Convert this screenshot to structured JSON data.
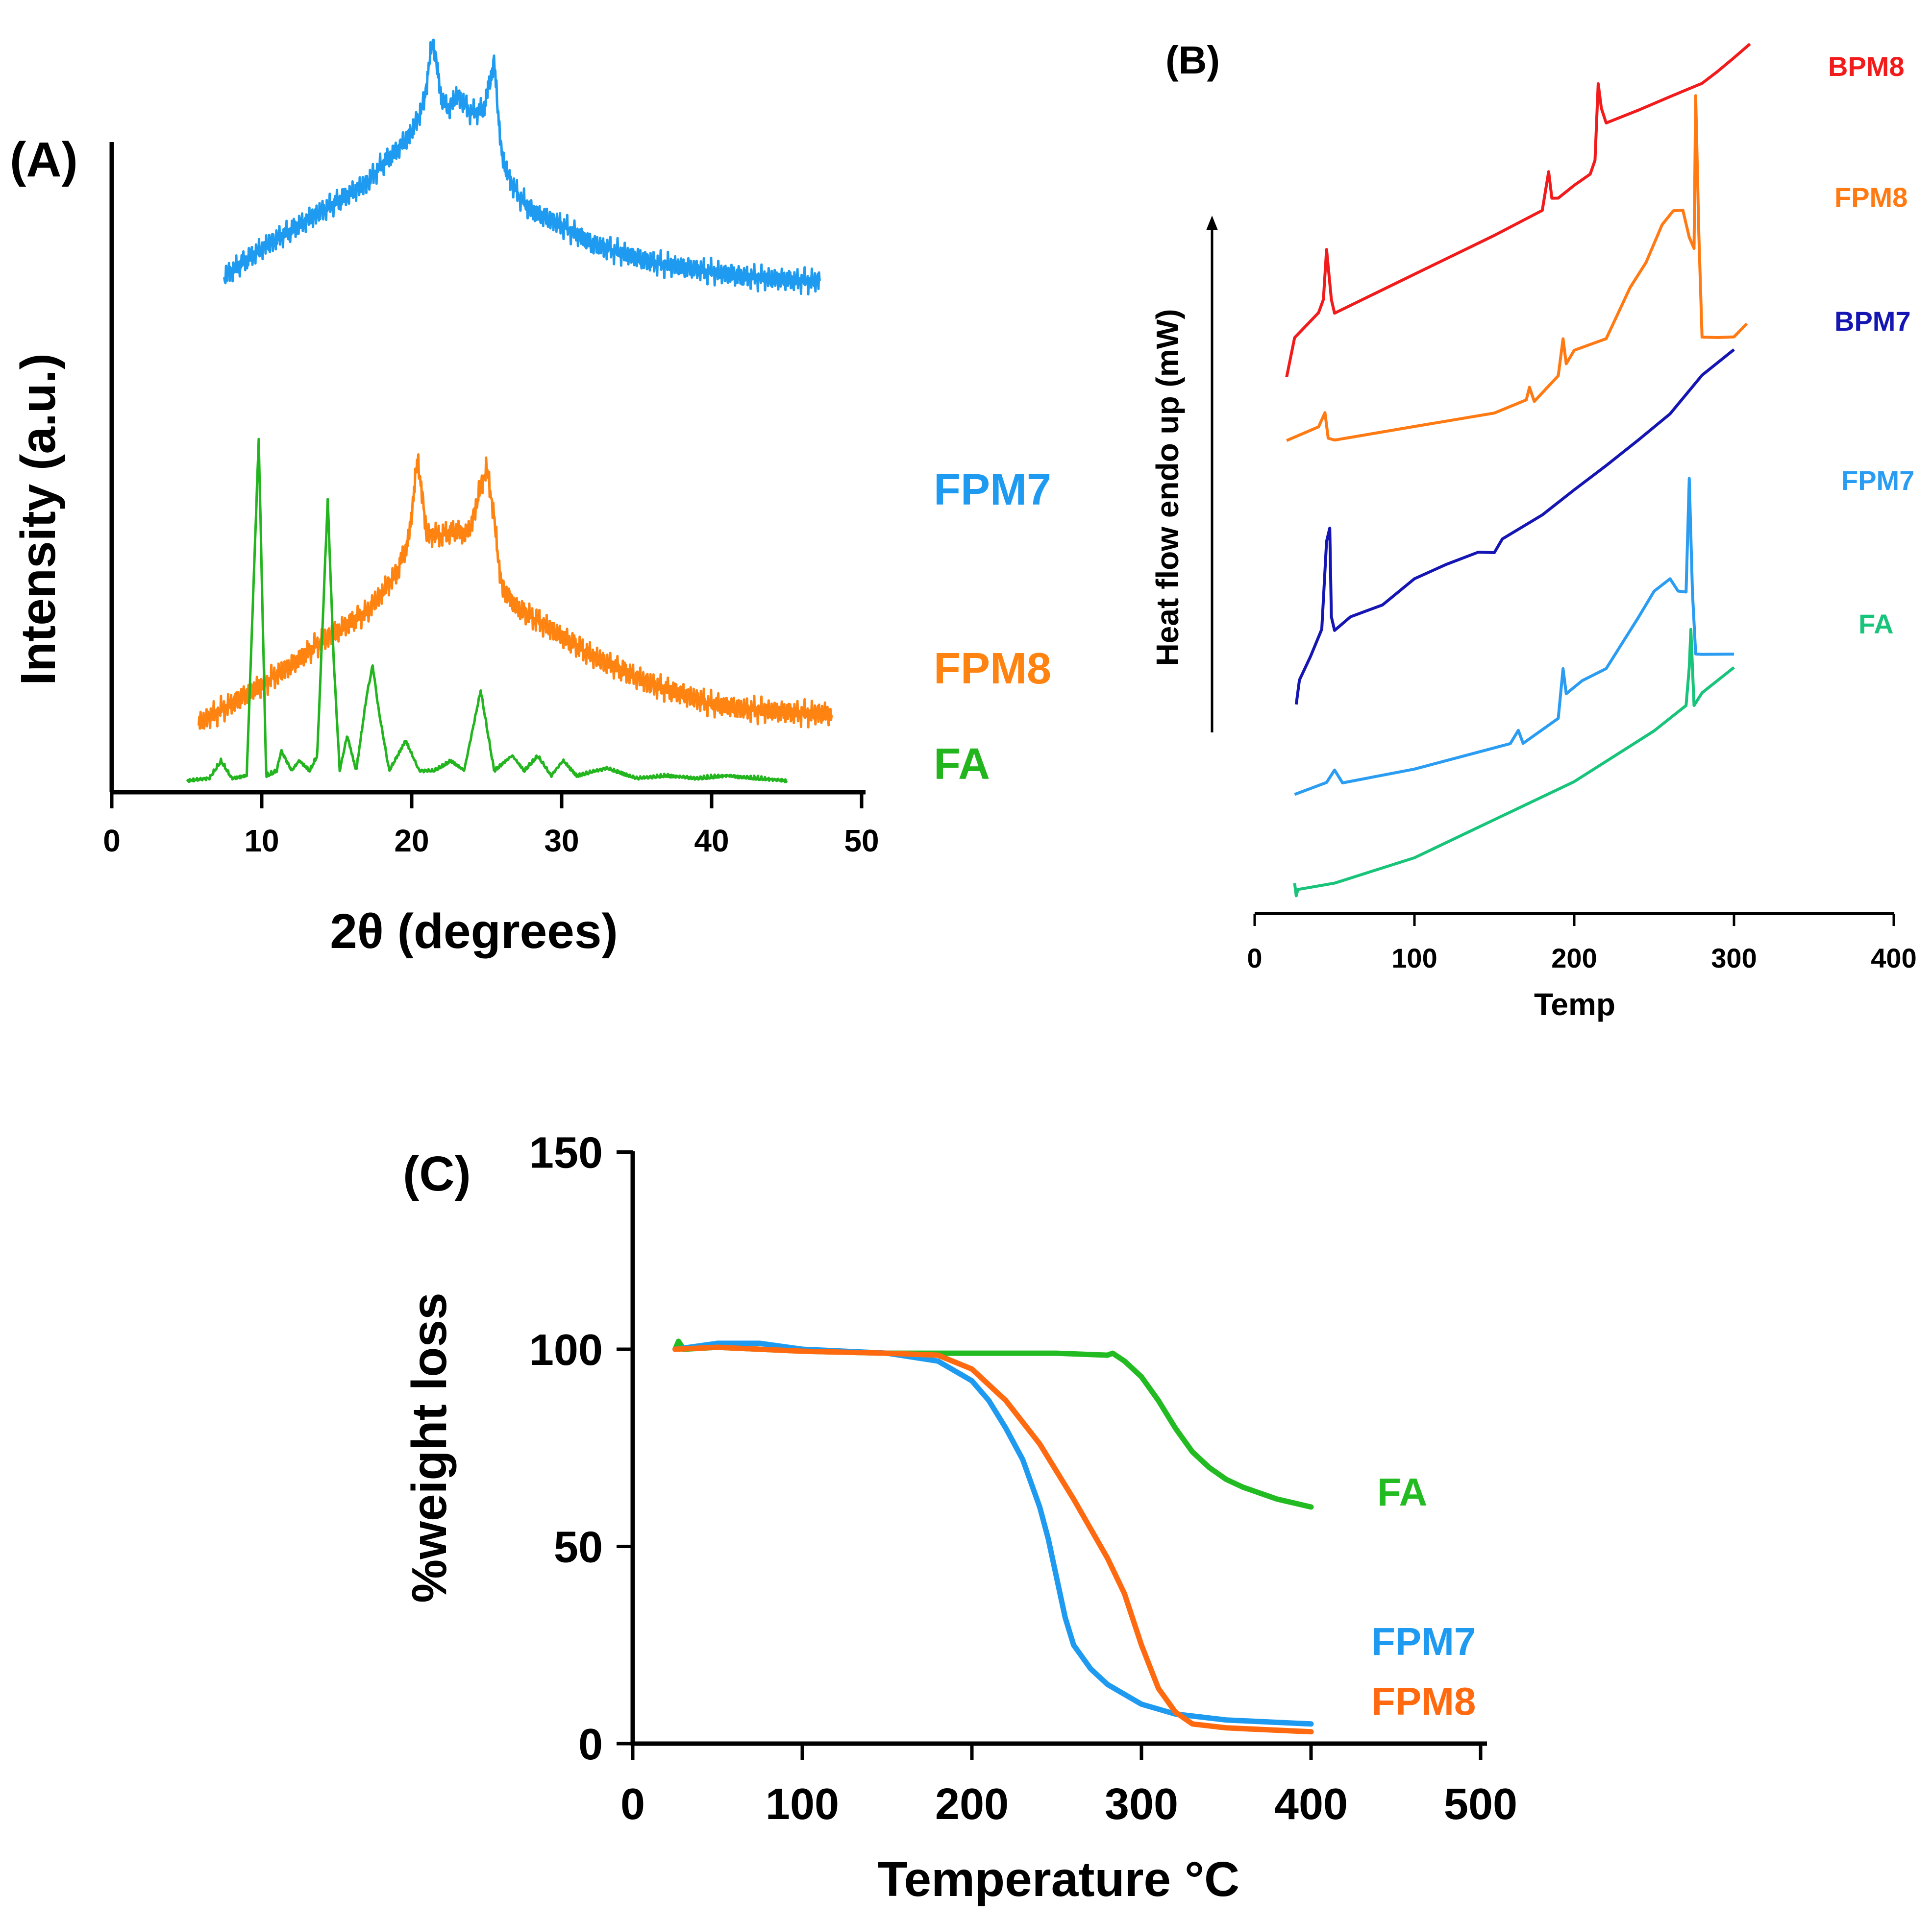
{
  "chart_data": [
    {
      "panel": "(A)",
      "type": "line",
      "title": "",
      "xlabel": "2θ (degrees)",
      "ylabel": "Intensity (a.u.)",
      "xlim": [
        0,
        50
      ],
      "xticks": [
        "0",
        "10",
        "20",
        "30",
        "40",
        "50"
      ],
      "yticks": [],
      "series": [
        {
          "name": "FPM7",
          "color": "#1E9BF0",
          "x": [
            7.5,
            10,
            12,
            14,
            16,
            17,
            18,
            19,
            20,
            20.8,
            21.4,
            22,
            22.5,
            23,
            24,
            24.8,
            25.5,
            26,
            26.5,
            27,
            28,
            30,
            32,
            34,
            36,
            38,
            40,
            42,
            44,
            46,
            47.2
          ],
          "y": [
            0.48,
            0.54,
            0.58,
            0.62,
            0.66,
            0.68,
            0.72,
            0.75,
            0.79,
            0.85,
            0.99,
            0.86,
            0.84,
            0.87,
            0.83,
            0.84,
            0.94,
            0.74,
            0.69,
            0.66,
            0.62,
            0.59,
            0.55,
            0.53,
            0.51,
            0.5,
            0.49,
            0.48,
            0.475,
            0.47,
            0.47
          ]
        },
        {
          "name": "FPM8",
          "color": "#FF8311",
          "x": [
            5.8,
            8,
            10,
            12,
            14,
            16,
            17,
            18,
            19,
            19.8,
            20.4,
            21,
            22,
            23,
            23.5,
            24,
            24.5,
            25,
            25.4,
            26,
            27,
            28,
            30,
            32,
            34,
            36,
            38,
            40,
            42,
            44,
            46,
            48
          ],
          "y": [
            0.07,
            0.11,
            0.15,
            0.19,
            0.24,
            0.28,
            0.3,
            0.34,
            0.38,
            0.45,
            0.62,
            0.46,
            0.46,
            0.47,
            0.46,
            0.48,
            0.55,
            0.6,
            0.52,
            0.35,
            0.31,
            0.29,
            0.25,
            0.21,
            0.18,
            0.15,
            0.13,
            0.11,
            0.1,
            0.095,
            0.09,
            0.09
          ]
        },
        {
          "name": "FA",
          "color": "#22B51E",
          "x": [
            5,
            6.5,
            7.3,
            8,
            9,
            9.8,
            10.3,
            11,
            11.3,
            12,
            12.5,
            13.2,
            13.7,
            14.4,
            14.8,
            15.2,
            15.7,
            16.3,
            17,
            17.4,
            17.8,
            18.5,
            19.6,
            20.5,
            21.5,
            22.6,
            23.5,
            24.6,
            25.5,
            26.7,
            27.5,
            28.4,
            29.3,
            30.1,
            31,
            33,
            35,
            37,
            39,
            41,
            43,
            45
          ],
          "y": [
            0.01,
            0.015,
            0.05,
            0.015,
            0.02,
            0.69,
            0.02,
            0.03,
            0.07,
            0.03,
            0.05,
            0.03,
            0.06,
            0.57,
            0.25,
            0.03,
            0.1,
            0.03,
            0.18,
            0.24,
            0.15,
            0.03,
            0.09,
            0.03,
            0.03,
            0.05,
            0.03,
            0.19,
            0.03,
            0.06,
            0.03,
            0.06,
            0.02,
            0.05,
            0.02,
            0.035,
            0.015,
            0.02,
            0.015,
            0.02,
            0.015,
            0.01
          ]
        }
      ],
      "legend": "right side, inline labels"
    },
    {
      "panel": "(B)",
      "type": "line",
      "title": "",
      "xlabel": "Temp",
      "ylabel": "Heat flow endo up (mW)",
      "xlim": [
        0,
        400
      ],
      "xticks": [
        "0",
        "100",
        "200",
        "300",
        "400"
      ],
      "series": [
        {
          "name": "BPM8",
          "color": "#F21B1B",
          "x": [
            20,
            25,
            40,
            43,
            45,
            48,
            50,
            100,
            150,
            180,
            184,
            186,
            190,
            200,
            210,
            213,
            215,
            217,
            220,
            240,
            260,
            280,
            290,
            300,
            310
          ],
          "y": [
            0.76,
            0.79,
            0.81,
            0.82,
            0.86,
            0.82,
            0.81,
            0.84,
            0.87,
            0.89,
            0.92,
            0.9,
            0.9,
            0.91,
            0.92,
            0.93,
            0.99,
            0.97,
            0.96,
            0.97,
            0.98,
            0.99,
            1.0,
            1.01,
            1.02
          ]
        },
        {
          "name": "FPM8",
          "color": "#FF7A13",
          "x": [
            20,
            40,
            44,
            46,
            50,
            100,
            150,
            170,
            172,
            175,
            190,
            193,
            195,
            200,
            220,
            235,
            245,
            255,
            262,
            268,
            272,
            275,
            276,
            278,
            280,
            290,
            300,
            308
          ],
          "y": [
            0.71,
            0.72,
            0.73,
            0.71,
            0.71,
            0.72,
            0.73,
            0.74,
            0.75,
            0.74,
            0.76,
            0.79,
            0.77,
            0.78,
            0.79,
            0.83,
            0.85,
            0.88,
            0.89,
            0.89,
            0.87,
            0.86,
            0.98,
            0.87,
            0.79,
            0.79,
            0.79,
            0.8
          ]
        },
        {
          "name": "BPM7",
          "color": "#1515B3",
          "x": [
            26,
            28,
            35,
            42,
            45,
            47,
            48,
            50,
            60,
            80,
            100,
            120,
            140,
            150,
            155,
            180,
            200,
            220,
            240,
            260,
            280,
            300
          ],
          "y": [
            0.5,
            0.52,
            0.54,
            0.56,
            0.63,
            0.64,
            0.57,
            0.56,
            0.57,
            0.58,
            0.6,
            0.61,
            0.62,
            0.62,
            0.63,
            0.65,
            0.67,
            0.69,
            0.71,
            0.73,
            0.76,
            0.78
          ]
        },
        {
          "name": "FPM7",
          "color": "#2A9CF2",
          "x": [
            25,
            45,
            50,
            55,
            100,
            160,
            165,
            168,
            190,
            193,
            195,
            205,
            220,
            240,
            250,
            260,
            265,
            270,
            272,
            274,
            276,
            280,
            300
          ],
          "y": [
            0.43,
            0.44,
            0.45,
            0.44,
            0.45,
            0.47,
            0.48,
            0.47,
            0.49,
            0.53,
            0.51,
            0.52,
            0.53,
            0.57,
            0.59,
            0.6,
            0.59,
            0.59,
            0.68,
            0.59,
            0.54,
            0.54,
            0.54
          ]
        },
        {
          "name": "FA",
          "color": "#17C47A",
          "x": [
            25,
            26,
            27,
            50,
            100,
            150,
            200,
            250,
            270,
            272,
            273,
            275,
            280,
            290,
            300
          ],
          "y": [
            0.36,
            0.35,
            0.355,
            0.36,
            0.38,
            0.41,
            0.44,
            0.48,
            0.5,
            0.53,
            0.56,
            0.5,
            0.51,
            0.52,
            0.53
          ]
        }
      ],
      "legend": "right side, stacked labels: BPM8, FPM8, BPM7, FPM7, FA"
    },
    {
      "panel": "(C)",
      "type": "line",
      "title": "",
      "xlabel": "Temperature °C",
      "ylabel": "%weight loss",
      "xlim": [
        0,
        500
      ],
      "ylim": [
        0,
        150
      ],
      "xticks": [
        "0",
        "100",
        "200",
        "300",
        "400",
        "500"
      ],
      "yticks": [
        "0",
        "50",
        "100",
        "150"
      ],
      "series": [
        {
          "name": "FA",
          "color": "#22BB22",
          "x": [
            25,
            27,
            30,
            50,
            100,
            150,
            200,
            250,
            280,
            283,
            290,
            300,
            310,
            320,
            330,
            340,
            350,
            360,
            370,
            380,
            390,
            400
          ],
          "y": [
            100,
            102,
            100,
            100.5,
            99.5,
            99,
            99,
            99,
            98.5,
            99,
            97,
            93,
            87,
            80,
            74,
            70,
            67,
            65,
            63.5,
            62,
            61,
            60
          ]
        },
        {
          "name": "FPM7",
          "color": "#1E9BF0",
          "x": [
            25,
            50,
            75,
            100,
            150,
            180,
            200,
            210,
            220,
            230,
            240,
            245,
            250,
            255,
            260,
            270,
            280,
            300,
            320,
            350,
            400
          ],
          "y": [
            100,
            101.5,
            101.5,
            100,
            99,
            97,
            92,
            87,
            80,
            72,
            60,
            52,
            42,
            32,
            25,
            19,
            15,
            10,
            7.5,
            6,
            5
          ]
        },
        {
          "name": "FPM8",
          "color": "#FF6A10",
          "x": [
            25,
            50,
            100,
            150,
            180,
            200,
            220,
            240,
            260,
            280,
            290,
            300,
            310,
            320,
            330,
            350,
            400
          ],
          "y": [
            100,
            100.5,
            99.5,
            99,
            98.5,
            95,
            87,
            76,
            62,
            47,
            38,
            25,
            14,
            8,
            5,
            4,
            3
          ]
        }
      ],
      "legend": "right side, inline labels"
    }
  ]
}
